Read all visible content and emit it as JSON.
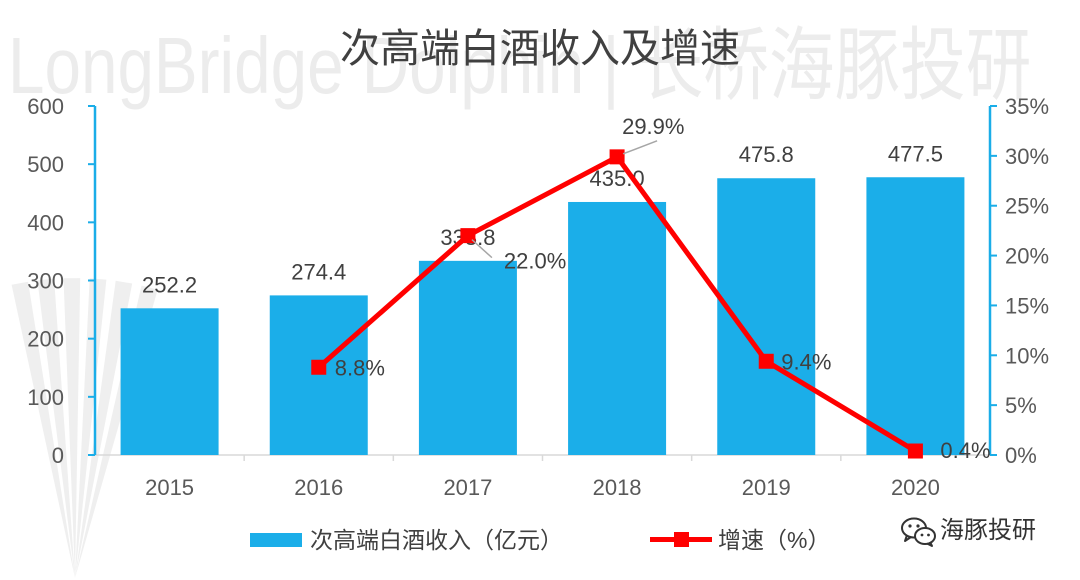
{
  "watermark": {
    "text": "LongBridge Dolphin | 长桥海豚投研"
  },
  "brand": {
    "icon": "wechat-icon",
    "name": "海豚投研"
  },
  "chart_data": {
    "type": "bar",
    "title": "次高端白酒收入及增速",
    "categories": [
      "2015",
      "2016",
      "2017",
      "2018",
      "2019",
      "2020"
    ],
    "ylim": [
      0,
      600
    ],
    "y2lim": [
      0,
      35
    ],
    "yticks": [
      "0",
      "100",
      "200",
      "300",
      "400",
      "500",
      "600"
    ],
    "y2ticks": [
      "0%",
      "5%",
      "10%",
      "15%",
      "20%",
      "25%",
      "30%",
      "35%"
    ],
    "grid": false,
    "legend": "bottom",
    "series": [
      {
        "name": "次高端白酒收入（亿元）",
        "type": "bar",
        "axis": "left",
        "color": "#1BAEE9",
        "values": [
          252.2,
          274.4,
          333.8,
          435.0,
          475.8,
          477.5
        ],
        "labels": [
          "252.2",
          "274.4",
          "333.8",
          "435.0",
          "475.8",
          "477.5"
        ]
      },
      {
        "name": "增速（%）",
        "type": "line",
        "axis": "right",
        "color": "#FF0000",
        "marker": "square",
        "values": [
          null,
          8.8,
          22.0,
          29.9,
          9.4,
          0.4
        ],
        "labels": [
          null,
          "8.8%",
          "22.0%",
          "29.9%",
          "9.4%",
          "0.4%"
        ]
      }
    ]
  }
}
